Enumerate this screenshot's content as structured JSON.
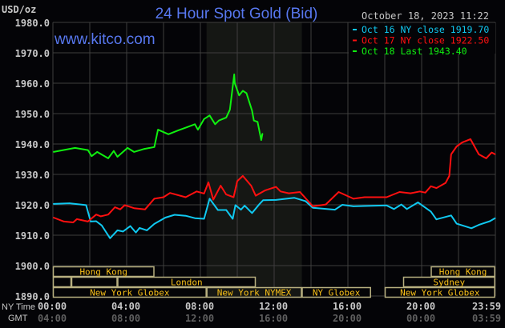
{
  "chart_data": {
    "type": "line",
    "title": "24 Hour Spot Gold (Bid)",
    "timestamp": "October 18, 2023 11:22",
    "watermark": "www.kitco.com",
    "ylabel": "USD/oz",
    "ylim": [
      1890,
      1980
    ],
    "yticks": [
      "1980.0",
      "1970.0",
      "1960.0",
      "1950.0",
      "1940.0",
      "1930.0",
      "1920.0",
      "1910.0",
      "1900.0",
      "1890.0"
    ],
    "grid": true,
    "legend_position": "top-right",
    "x_axis": {
      "ny_label": "NY Time",
      "gmt_label": "GMT",
      "ny_ticks": [
        "00:00",
        "04:00",
        "08:00",
        "12:00",
        "16:00",
        "20:00",
        "23:59"
      ],
      "gmt_ticks": [
        "04:00",
        "08:00",
        "12:00",
        "16:00",
        "20:00",
        "00:00",
        "03:59"
      ]
    },
    "highlight": {
      "from": "08:20",
      "to": "13:30",
      "color": "#151714"
    },
    "series": [
      {
        "name": "Oct 16 NY close 1919.70",
        "color": "#10c8f0",
        "points": [
          [
            "00:02",
            1920.3
          ],
          [
            "00:54",
            1920.5
          ],
          [
            "01:48",
            1919.9
          ],
          [
            "02:03",
            1914.5
          ],
          [
            "02:21",
            1914.6
          ],
          [
            "02:39",
            1913.2
          ],
          [
            "03:06",
            1909.0
          ],
          [
            "03:30",
            1911.6
          ],
          [
            "03:48",
            1911.2
          ],
          [
            "04:12",
            1913.0
          ],
          [
            "04:30",
            1910.9
          ],
          [
            "04:42",
            1912.4
          ],
          [
            "05:06",
            1911.6
          ],
          [
            "05:30",
            1913.7
          ],
          [
            "06:06",
            1915.8
          ],
          [
            "06:36",
            1916.7
          ],
          [
            "07:12",
            1916.4
          ],
          [
            "07:42",
            1915.6
          ],
          [
            "08:12",
            1915.4
          ],
          [
            "08:30",
            1922.0
          ],
          [
            "08:57",
            1918.3
          ],
          [
            "09:24",
            1918.3
          ],
          [
            "09:45",
            1915.4
          ],
          [
            "09:54",
            1919.9
          ],
          [
            "10:12",
            1918.4
          ],
          [
            "10:24",
            1919.7
          ],
          [
            "10:48",
            1917.3
          ],
          [
            "11:12",
            1920.2
          ],
          [
            "11:24",
            1921.5
          ],
          [
            "12:06",
            1921.6
          ],
          [
            "13:06",
            1922.3
          ],
          [
            "13:42",
            1921.2
          ],
          [
            "14:06",
            1919.0
          ],
          [
            "15:18",
            1918.4
          ],
          [
            "15:42",
            1920.0
          ],
          [
            "16:18",
            1919.5
          ],
          [
            "18:06",
            1919.8
          ],
          [
            "18:30",
            1918.6
          ],
          [
            "18:54",
            1920.1
          ],
          [
            "19:12",
            1918.6
          ],
          [
            "19:48",
            1920.8
          ],
          [
            "20:30",
            1917.8
          ],
          [
            "20:48",
            1915.2
          ],
          [
            "21:36",
            1916.5
          ],
          [
            "21:54",
            1913.8
          ],
          [
            "22:42",
            1912.3
          ],
          [
            "23:06",
            1913.4
          ],
          [
            "23:42",
            1914.6
          ],
          [
            "23:59",
            1915.6
          ]
        ]
      },
      {
        "name": "Oct 17 NY close 1922.50",
        "color": "#ff1010",
        "points": [
          [
            "00:02",
            1915.8
          ],
          [
            "00:36",
            1914.5
          ],
          [
            "01:06",
            1914.2
          ],
          [
            "01:18",
            1915.3
          ],
          [
            "01:54",
            1914.5
          ],
          [
            "02:21",
            1916.8
          ],
          [
            "02:36",
            1916.2
          ],
          [
            "03:00",
            1916.8
          ],
          [
            "03:22",
            1919.2
          ],
          [
            "03:39",
            1918.5
          ],
          [
            "03:54",
            1919.9
          ],
          [
            "04:24",
            1918.9
          ],
          [
            "05:00",
            1918.5
          ],
          [
            "05:30",
            1922.0
          ],
          [
            "06:00",
            1922.5
          ],
          [
            "06:21",
            1923.9
          ],
          [
            "07:12",
            1922.5
          ],
          [
            "07:48",
            1924.4
          ],
          [
            "08:12",
            1923.7
          ],
          [
            "08:26",
            1927.4
          ],
          [
            "08:42",
            1921.7
          ],
          [
            "09:06",
            1926.3
          ],
          [
            "09:24",
            1923.4
          ],
          [
            "09:48",
            1922.5
          ],
          [
            "10:00",
            1927.8
          ],
          [
            "10:18",
            1929.5
          ],
          [
            "10:45",
            1926.3
          ],
          [
            "11:00",
            1923.0
          ],
          [
            "11:30",
            1924.7
          ],
          [
            "12:06",
            1925.9
          ],
          [
            "12:21",
            1924.4
          ],
          [
            "12:48",
            1923.8
          ],
          [
            "13:24",
            1924.2
          ],
          [
            "14:06",
            1919.5
          ],
          [
            "14:48",
            1920.1
          ],
          [
            "15:30",
            1924.2
          ],
          [
            "16:18",
            1922.0
          ],
          [
            "16:54",
            1922.5
          ],
          [
            "18:06",
            1922.5
          ],
          [
            "18:48",
            1924.2
          ],
          [
            "19:24",
            1923.8
          ],
          [
            "19:54",
            1924.4
          ],
          [
            "20:12",
            1924.0
          ],
          [
            "20:30",
            1926.1
          ],
          [
            "20:48",
            1925.5
          ],
          [
            "21:18",
            1927.2
          ],
          [
            "21:30",
            1929.5
          ],
          [
            "21:36",
            1936.6
          ],
          [
            "21:54",
            1939.2
          ],
          [
            "22:12",
            1940.5
          ],
          [
            "22:39",
            1941.6
          ],
          [
            "23:06",
            1936.6
          ],
          [
            "23:30",
            1935.3
          ],
          [
            "23:48",
            1937.2
          ],
          [
            "23:59",
            1936.6
          ]
        ]
      },
      {
        "name": "Oct 18 Last 1943.40",
        "color": "#10f010",
        "points": [
          [
            "00:02",
            1937.4
          ],
          [
            "01:12",
            1938.7
          ],
          [
            "01:54",
            1938.0
          ],
          [
            "02:06",
            1936.0
          ],
          [
            "02:24",
            1937.4
          ],
          [
            "03:00",
            1935.3
          ],
          [
            "03:18",
            1937.7
          ],
          [
            "03:30",
            1935.8
          ],
          [
            "04:03",
            1938.7
          ],
          [
            "04:24",
            1937.4
          ],
          [
            "04:58",
            1938.4
          ],
          [
            "05:30",
            1939.0
          ],
          [
            "05:42",
            1944.7
          ],
          [
            "06:16",
            1943.2
          ],
          [
            "06:48",
            1944.5
          ],
          [
            "07:16",
            1945.5
          ],
          [
            "07:42",
            1946.5
          ],
          [
            "07:52",
            1944.7
          ],
          [
            "08:12",
            1948.2
          ],
          [
            "08:30",
            1949.4
          ],
          [
            "08:48",
            1946.5
          ],
          [
            "09:00",
            1947.7
          ],
          [
            "09:24",
            1948.7
          ],
          [
            "09:36",
            1951.3
          ],
          [
            "09:50",
            1962.9
          ],
          [
            "09:52",
            1960.0
          ],
          [
            "10:06",
            1956.0
          ],
          [
            "10:18",
            1957.5
          ],
          [
            "10:30",
            1956.7
          ],
          [
            "10:48",
            1951.0
          ],
          [
            "10:54",
            1947.7
          ],
          [
            "11:06",
            1947.3
          ],
          [
            "11:18",
            1941.3
          ],
          [
            "11:22",
            1943.4
          ]
        ]
      }
    ],
    "sessions": [
      {
        "row": 0,
        "label": "Hong Kong",
        "from": "00:00",
        "to": "05:30"
      },
      {
        "row": 0,
        "label": "Hong Kong",
        "from": "20:30",
        "to": "23:59"
      },
      {
        "row": 1,
        "label": "",
        "from": "00:00",
        "to": "01:00"
      },
      {
        "row": 1,
        "label": "",
        "from": "01:00",
        "to": "03:30"
      },
      {
        "row": 1,
        "label": "London",
        "from": "03:30",
        "to": "11:00"
      },
      {
        "row": 1,
        "label": "Sydney",
        "from": "19:00",
        "to": "23:59"
      },
      {
        "row": 2,
        "label": "New York Globex",
        "from": "00:00",
        "to": "08:20"
      },
      {
        "row": 2,
        "label": "New York NYMEX",
        "from": "08:20",
        "to": "13:30"
      },
      {
        "row": 2,
        "label": "NY Globex",
        "from": "13:30",
        "to": "17:15"
      },
      {
        "row": 2,
        "label": "New York Globex",
        "from": "18:00",
        "to": "23:59"
      }
    ],
    "colors": {
      "title": "#5878f0",
      "grid": "#3e3e3e",
      "axis_text": "#c8c8c8",
      "gmt_text": "#606060",
      "session_border": "#b8b080",
      "session_text": "#f8c018"
    }
  }
}
